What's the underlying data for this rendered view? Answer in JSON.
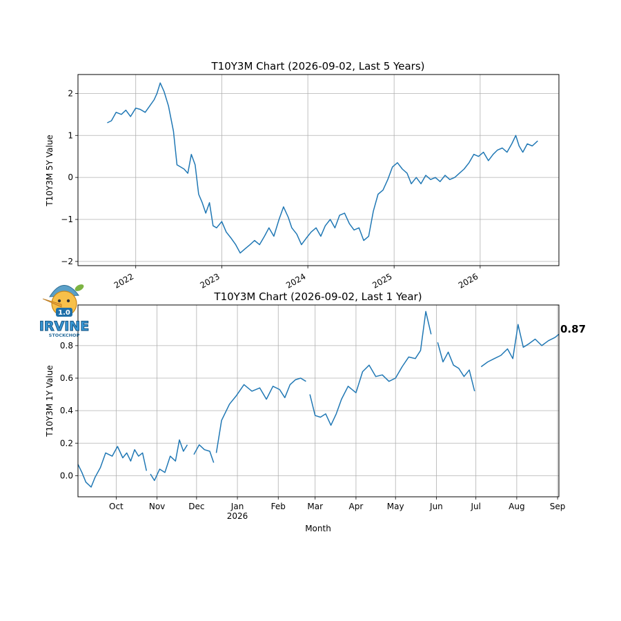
{
  "logo": {
    "badge": "1.0",
    "word": "IRVINE",
    "sub": "STOCKCHOP"
  },
  "chart_data": [
    {
      "type": "line",
      "title": "T10Y3M Chart (2026-09-02, Last 5 Years)",
      "xlabel": "",
      "ylabel": "T10Y3M 5Y Value",
      "grid": true,
      "ylim": [
        -2.1,
        2.45
      ],
      "xlim": [
        "2021-05-01",
        "2026-12-01"
      ],
      "x_ticks": [
        "2022",
        "2023",
        "2024",
        "2025",
        "2026"
      ],
      "x_tick_dates": [
        "2022-01-01",
        "2023-01-01",
        "2024-01-01",
        "2025-01-01",
        "2026-01-01"
      ],
      "y_ticks": [
        -2,
        -1,
        0,
        1,
        2
      ],
      "line_color": "#1f77b4",
      "series": [
        {
          "x": [
            "2021-09-02",
            "2021-09-20",
            "2021-10-10",
            "2021-11-01",
            "2021-11-20",
            "2021-12-10",
            "2022-01-01",
            "2022-01-20",
            "2022-02-10",
            "2022-03-01",
            "2022-03-20",
            "2022-04-01",
            "2022-04-15",
            "2022-05-01",
            "2022-05-20",
            "2022-06-10",
            "2022-06-25",
            "2022-07-10",
            "2022-07-25",
            "2022-08-10",
            "2022-08-25",
            "2022-09-10",
            "2022-09-25",
            "2022-10-10",
            "2022-10-25",
            "2022-11-10",
            "2022-11-25",
            "2022-12-10",
            "2023-01-01",
            "2023-01-20",
            "2023-02-10",
            "2023-03-01",
            "2023-03-20",
            "2023-04-10",
            "2023-05-01",
            "2023-05-20",
            "2023-06-10",
            "2023-07-01",
            "2023-07-20",
            "2023-08-10",
            "2023-09-01",
            "2023-09-20",
            "2023-10-10",
            "2023-10-25",
            "2023-11-15",
            "2023-12-05",
            "2023-12-25",
            "2024-01-15",
            "2024-02-05",
            "2024-02-25",
            "2024-03-15",
            "2024-04-05",
            "2024-04-25",
            "2024-05-15",
            "2024-06-05",
            "2024-06-25",
            "2024-07-15",
            "2024-08-05",
            "2024-08-25",
            "2024-09-15",
            "2024-10-05",
            "2024-10-25",
            "2024-11-15",
            "2024-12-05",
            "2024-12-25",
            "2025-01-15",
            "2025-02-05",
            "2025-02-25",
            "2025-03-15",
            "2025-04-05",
            "2025-04-25",
            "2025-05-15",
            "2025-06-05",
            "2025-06-25",
            "2025-07-15",
            "2025-08-05",
            "2025-08-25",
            "2025-09-15",
            "2025-10-05",
            "2025-10-25",
            "2025-11-15",
            "2025-12-05",
            "2025-12-25",
            "2026-01-15",
            "2026-02-05",
            "2026-02-25",
            "2026-03-15",
            "2026-04-05",
            "2026-04-25",
            "2026-05-15",
            "2026-06-01",
            "2026-06-15",
            "2026-07-01",
            "2026-07-20",
            "2026-08-10",
            "2026-09-02"
          ],
          "y": [
            1.3,
            1.35,
            1.55,
            1.5,
            1.6,
            1.45,
            1.65,
            1.62,
            1.55,
            1.7,
            1.85,
            2.0,
            2.25,
            2.05,
            1.7,
            1.1,
            0.3,
            0.25,
            0.2,
            0.1,
            0.55,
            0.3,
            -0.4,
            -0.6,
            -0.85,
            -0.6,
            -1.15,
            -1.2,
            -1.05,
            -1.3,
            -1.45,
            -1.6,
            -1.8,
            -1.7,
            -1.6,
            -1.5,
            -1.6,
            -1.4,
            -1.2,
            -1.4,
            -1.0,
            -0.7,
            -0.95,
            -1.2,
            -1.35,
            -1.6,
            -1.45,
            -1.3,
            -1.2,
            -1.4,
            -1.15,
            -1.0,
            -1.2,
            -0.9,
            -0.85,
            -1.1,
            -1.25,
            -1.2,
            -1.5,
            -1.4,
            -0.8,
            -0.4,
            -0.3,
            -0.05,
            0.25,
            0.35,
            0.2,
            0.1,
            -0.15,
            0.0,
            -0.15,
            0.05,
            -0.05,
            0.0,
            -0.1,
            0.05,
            -0.05,
            0.0,
            0.1,
            0.2,
            0.35,
            0.55,
            0.5,
            0.6,
            0.4,
            0.55,
            0.65,
            0.7,
            0.6,
            0.8,
            1.0,
            0.75,
            0.6,
            0.8,
            0.75,
            0.87
          ]
        }
      ]
    },
    {
      "type": "line",
      "title": "T10Y3M Chart (2026-09-02, Last 1 Year)",
      "xlabel": "Month",
      "ylabel": "T10Y3M 1Y Value",
      "grid": true,
      "ylim": [
        -0.13,
        1.05
      ],
      "xlim": [
        "2025-09-02",
        "2026-09-02"
      ],
      "x_ticks": [
        "Oct",
        "Nov",
        "Dec",
        "Jan",
        "Feb",
        "Mar",
        "Apr",
        "May",
        "Jun",
        "Jul",
        "Aug",
        "Sep"
      ],
      "x_tick_dates": [
        "2025-10-01",
        "2025-11-01",
        "2025-12-01",
        "2026-01-01",
        "2026-02-01",
        "2026-03-01",
        "2026-04-01",
        "2026-05-01",
        "2026-06-01",
        "2026-07-01",
        "2026-08-01",
        "2026-09-01"
      ],
      "x_tick_sublabels": [
        "",
        "",
        "",
        "2026",
        "",
        "",
        "",
        "",
        "",
        "",
        "",
        ""
      ],
      "y_ticks": [
        0.0,
        0.2,
        0.4,
        0.6,
        0.8
      ],
      "y_tick_labels": [
        "0.0",
        "0.2",
        "0.4",
        "0.6",
        "0.8"
      ],
      "last_value_label": "0.87",
      "line_color": "#1f77b4",
      "series": [
        {
          "segments": [
            {
              "x": [
                "2025-09-02",
                "2025-09-05",
                "2025-09-08",
                "2025-09-12",
                "2025-09-15",
                "2025-09-19",
                "2025-09-23",
                "2025-09-28",
                "2025-10-02",
                "2025-10-06",
                "2025-10-09",
                "2025-10-12",
                "2025-10-15",
                "2025-10-18",
                "2025-10-21",
                "2025-10-24"
              ],
              "y": [
                0.07,
                0.02,
                -0.04,
                -0.07,
                -0.01,
                0.05,
                0.14,
                0.12,
                0.18,
                0.11,
                0.14,
                0.09,
                0.16,
                0.12,
                0.14,
                0.03
              ]
            },
            {
              "x": [
                "2025-10-27",
                "2025-10-30",
                "2025-11-03",
                "2025-11-07",
                "2025-11-11",
                "2025-11-15",
                "2025-11-18",
                "2025-11-21",
                "2025-11-24"
              ],
              "y": [
                0.01,
                -0.03,
                0.04,
                0.02,
                0.12,
                0.09,
                0.22,
                0.15,
                0.19
              ]
            },
            {
              "x": [
                "2025-11-29",
                "2025-12-03",
                "2025-12-07",
                "2025-12-11",
                "2025-12-14"
              ],
              "y": [
                0.13,
                0.19,
                0.16,
                0.15,
                0.08
              ]
            },
            {
              "x": [
                "2025-12-16",
                "2025-12-20",
                "2025-12-26",
                "2025-12-31",
                "2026-01-06",
                "2026-01-12",
                "2026-01-18",
                "2026-01-23",
                "2026-01-28",
                "2026-02-02",
                "2026-02-06",
                "2026-02-10",
                "2026-02-14",
                "2026-02-18",
                "2026-02-22"
              ],
              "y": [
                0.14,
                0.34,
                0.44,
                0.49,
                0.56,
                0.52,
                0.54,
                0.47,
                0.55,
                0.53,
                0.48,
                0.56,
                0.59,
                0.6,
                0.58
              ]
            },
            {
              "x": [
                "2026-02-25",
                "2026-03-01",
                "2026-03-05",
                "2026-03-09",
                "2026-03-13",
                "2026-03-17",
                "2026-03-21",
                "2026-03-26",
                "2026-04-01",
                "2026-04-06",
                "2026-04-11",
                "2026-04-16",
                "2026-04-21",
                "2026-04-26",
                "2026-05-01",
                "2026-05-06",
                "2026-05-11",
                "2026-05-16",
                "2026-05-20",
                "2026-05-24",
                "2026-05-28"
              ],
              "y": [
                0.5,
                0.37,
                0.36,
                0.38,
                0.31,
                0.38,
                0.47,
                0.55,
                0.51,
                0.64,
                0.68,
                0.61,
                0.62,
                0.58,
                0.6,
                0.67,
                0.73,
                0.72,
                0.77,
                1.01,
                0.87
              ]
            },
            {
              "x": [
                "2026-06-02",
                "2026-06-06",
                "2026-06-10",
                "2026-06-14",
                "2026-06-18",
                "2026-06-22",
                "2026-06-26",
                "2026-06-30"
              ],
              "y": [
                0.82,
                0.7,
                0.76,
                0.68,
                0.66,
                0.61,
                0.65,
                0.52
              ]
            },
            {
              "x": [
                "2026-07-05",
                "2026-07-10",
                "2026-07-15",
                "2026-07-20",
                "2026-07-25",
                "2026-07-29",
                "2026-08-02",
                "2026-08-06",
                "2026-08-10",
                "2026-08-15",
                "2026-08-20",
                "2026-08-25",
                "2026-08-30",
                "2026-09-02"
              ],
              "y": [
                0.67,
                0.7,
                0.72,
                0.74,
                0.78,
                0.72,
                0.93,
                0.79,
                0.81,
                0.84,
                0.8,
                0.83,
                0.85,
                0.87
              ]
            }
          ]
        }
      ]
    }
  ]
}
